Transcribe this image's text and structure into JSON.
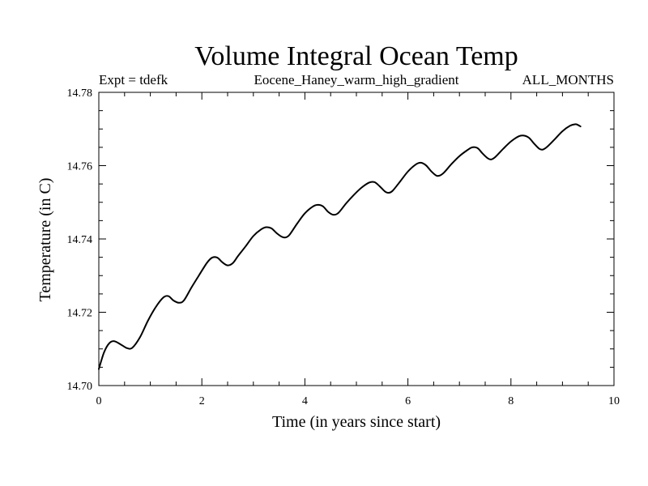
{
  "chart_data": {
    "type": "line",
    "title": "Volume Integral Ocean Temp",
    "subtitle_left": "Expt = tdefk",
    "subtitle_center": "Eocene_Haney_warm_high_gradient",
    "subtitle_right": "ALL_MONTHS",
    "xlabel": "Time (in years since start)",
    "ylabel": "Temperature (in C)",
    "xlim": [
      0,
      10
    ],
    "ylim": [
      14.7,
      14.78
    ],
    "x_ticks": [
      "0",
      "2",
      "4",
      "6",
      "8",
      "10"
    ],
    "y_ticks": [
      "14.70",
      "14.72",
      "14.74",
      "14.76",
      "14.78"
    ],
    "grid": false,
    "series": [
      {
        "color": "#000000",
        "x": [
          0.0,
          0.1,
          0.2,
          0.3,
          0.45,
          0.55,
          0.65,
          0.8,
          0.95,
          1.1,
          1.25,
          1.35,
          1.45,
          1.55,
          1.65,
          1.8,
          1.95,
          2.1,
          2.2,
          2.3,
          2.4,
          2.5,
          2.6,
          2.7,
          2.85,
          3.0,
          3.15,
          3.25,
          3.35,
          3.45,
          3.55,
          3.62,
          3.7,
          3.85,
          4.0,
          4.15,
          4.25,
          4.35,
          4.45,
          4.55,
          4.65,
          4.8,
          4.95,
          5.1,
          5.25,
          5.35,
          5.45,
          5.55,
          5.62,
          5.7,
          5.85,
          6.0,
          6.15,
          6.25,
          6.35,
          6.45,
          6.55,
          6.62,
          6.7,
          6.85,
          7.0,
          7.15,
          7.25,
          7.35,
          7.45,
          7.55,
          7.62,
          7.7,
          7.85,
          8.0,
          8.15,
          8.25,
          8.35,
          8.45,
          8.55,
          8.62,
          8.7,
          8.85,
          9.0,
          9.15,
          9.25,
          9.3,
          9.35
        ],
        "y": [
          14.7045,
          14.709,
          14.7115,
          14.7121,
          14.711,
          14.7102,
          14.7103,
          14.7132,
          14.7176,
          14.7213,
          14.724,
          14.7244,
          14.7232,
          14.7226,
          14.7232,
          14.7268,
          14.7302,
          14.7335,
          14.7349,
          14.7349,
          14.7336,
          14.7328,
          14.7334,
          14.7353,
          14.738,
          14.7408,
          14.7426,
          14.7432,
          14.7429,
          14.7416,
          14.7406,
          14.7404,
          14.7411,
          14.7442,
          14.747,
          14.7488,
          14.7493,
          14.7489,
          14.7474,
          14.7466,
          14.7471,
          14.7497,
          14.752,
          14.754,
          14.7554,
          14.7555,
          14.7544,
          14.753,
          14.7526,
          14.7531,
          14.7557,
          14.7584,
          14.7603,
          14.7608,
          14.7601,
          14.7585,
          14.7573,
          14.7573,
          14.7581,
          14.7605,
          14.7626,
          14.7642,
          14.765,
          14.7648,
          14.7633,
          14.762,
          14.7617,
          14.7624,
          14.7646,
          14.7666,
          14.768,
          14.7682,
          14.7676,
          14.766,
          14.7646,
          14.7644,
          14.7651,
          14.7672,
          14.7694,
          14.7709,
          14.7713,
          14.7711,
          14.7707
        ]
      }
    ]
  }
}
